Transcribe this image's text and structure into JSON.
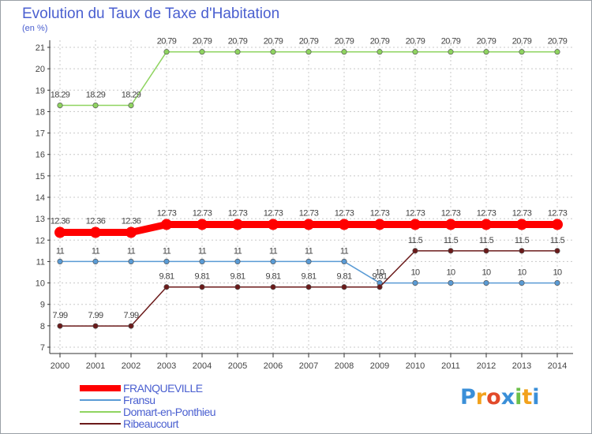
{
  "colors": {
    "background": "#ffffff",
    "grid": "#c8c8c8",
    "axis": "#333333",
    "text": "#4a5fd0",
    "label": "#444444"
  },
  "chart_data": {
    "type": "line",
    "title": "Evolution du Taux de Taxe d'Habitation",
    "subtitle": "(en %)",
    "xlabel": "",
    "ylabel": "",
    "x": [
      "2000",
      "2001",
      "2002",
      "2003",
      "2004",
      "2005",
      "2006",
      "2007",
      "2008",
      "2009",
      "2010",
      "2011",
      "2012",
      "2013",
      "2014"
    ],
    "ylim": [
      7,
      21
    ],
    "yticks": [
      "7",
      "8",
      "9",
      "10",
      "11",
      "12",
      "13",
      "14",
      "15",
      "16",
      "17",
      "18",
      "19",
      "20",
      "21"
    ],
    "grid": true,
    "legend_position": "bottom-left",
    "series": [
      {
        "name": "FRANQUEVILLE",
        "color": "#ff0000",
        "values": [
          12.36,
          12.36,
          12.36,
          12.73,
          12.73,
          12.73,
          12.73,
          12.73,
          12.73,
          12.73,
          12.73,
          12.73,
          12.73,
          12.73,
          12.73
        ],
        "labels": [
          "12.36",
          "12.36",
          "12.36",
          "12.73",
          "12.73",
          "12.73",
          "12.73",
          "12.73",
          "12.73",
          "12.73",
          "12.73",
          "12.73",
          "12.73",
          "12.73",
          "12.73"
        ],
        "highlight": true
      },
      {
        "name": "Fransu",
        "color": "#5a9bd5",
        "values": [
          11,
          11,
          11,
          11,
          11,
          11,
          11,
          11,
          11,
          10,
          10,
          10,
          10,
          10,
          10
        ],
        "labels": [
          "11",
          "11",
          "11",
          "11",
          "11",
          "11",
          "11",
          "11",
          "11",
          "10",
          "10",
          "10",
          "10",
          "10",
          "10"
        ]
      },
      {
        "name": "Domart-en-Ponthieu",
        "color": "#8fd460",
        "values": [
          18.29,
          18.29,
          18.29,
          20.79,
          20.79,
          20.79,
          20.79,
          20.79,
          20.79,
          20.79,
          20.79,
          20.79,
          20.79,
          20.79,
          20.79
        ],
        "labels": [
          "18.29",
          "18.29",
          "18.29",
          "20.79",
          "20.79",
          "20.79",
          "20.79",
          "20.79",
          "20.79",
          "20.79",
          "20.79",
          "20.79",
          "20.79",
          "20.79",
          "20.79"
        ]
      },
      {
        "name": "Ribeaucourt",
        "color": "#6b1a1a",
        "values": [
          7.99,
          7.99,
          7.99,
          9.81,
          9.81,
          9.81,
          9.81,
          9.81,
          9.81,
          9.81,
          11.5,
          11.5,
          11.5,
          11.5,
          11.5
        ],
        "labels": [
          "7.99",
          "7.99",
          "7.99",
          "9.81",
          "9.81",
          "9.81",
          "9.81",
          "9.81",
          "9.81",
          "9.81",
          "11.5",
          "11.5",
          "11.5",
          "11.5",
          "11.5"
        ]
      }
    ]
  },
  "logo": {
    "letters": [
      "P",
      "r",
      "o",
      "x",
      "i",
      "t",
      "i"
    ],
    "colors": [
      "#3a8fd8",
      "#f2a21d",
      "#e24a2a",
      "#3a8fd8",
      "#6cc04a",
      "#f2a21d",
      "#3a8fd8"
    ]
  }
}
